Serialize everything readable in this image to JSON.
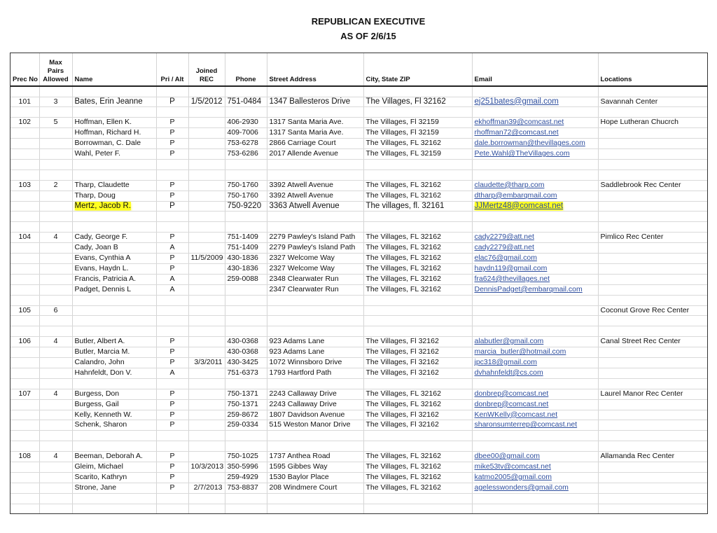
{
  "title": "REPUBLICAN EXECUTIVE",
  "subtitle": "AS OF 2/6/15",
  "highlight_color": "#ffff00",
  "link_color": "#2e4e9e",
  "columns": [
    "Prec No",
    "Max Pairs Allowed",
    "Name",
    "Pri / Alt",
    "Joined REC",
    "Phone",
    "Street Address",
    "City, State ZIP",
    "Email",
    "Locations"
  ],
  "rows": [
    {
      "prec": "101",
      "max": "3",
      "name": "Bates, Erin Jeanne",
      "pa": "P",
      "joined": "1/5/2012",
      "phone": "751-0484",
      "street": "1347 Ballesteros Drive",
      "city": "The Villages, Fl  32162",
      "email": "ej251bates@gmail.com",
      "loc": "Savannah Center",
      "big": true
    },
    {},
    {
      "prec": "102",
      "max": "5",
      "name": "Hoffman, Ellen K.",
      "pa": "P",
      "phone": "406-2930",
      "street": "1317 Santa Maria Ave.",
      "city": "The Villages, Fl  32159",
      "email": "ekhoffman39@comcast.net",
      "loc": "Hope Lutheran Chucrch"
    },
    {
      "name": "Hoffman, Richard H.",
      "pa": "P",
      "phone": "409-7006",
      "street": "1317 Santa Maria Ave.",
      "city": "The Villages, Fl  32159",
      "email": "rhoffman72@comcast.net"
    },
    {
      "name": "Borrowman, C. Dale",
      "pa": "P",
      "phone": "753-6278",
      "street": "2866 Carriage Court",
      "city": "The Villages, FL  32162",
      "email": "dale.borrowman@thevillages.com"
    },
    {
      "name": "Wahl, Peter F.",
      "pa": "P",
      "phone": "753-6286",
      "street": "2017 Allende Avenue",
      "city": "The Villages, FL  32159",
      "email": "Pete.Wahl@TheVillages.com"
    },
    {},
    {},
    {
      "prec": "103",
      "max": "2",
      "name": "Tharp, Claudette",
      "pa": "P",
      "phone": "750-1760",
      "street": "3392 Atwell Avenue",
      "city": "The Villages, FL  32162",
      "email": "claudette@tharp.com",
      "loc": "Saddlebrook Rec Center"
    },
    {
      "name": "Tharp, Doug",
      "pa": "P",
      "phone": "750-1760",
      "street": "3392 Atwell Avenue",
      "city": "The Villages, FL  32162",
      "email": "dtharp@embarqmail.com"
    },
    {
      "name": "Mertz, Jacob R.",
      "pa": "P",
      "phone": "750-9220",
      "street": "3363 Atwell Avenue",
      "city": "The villages, fl.  32161",
      "email": "JJMertz48@comcast.net",
      "highlight": true
    },
    {},
    {},
    {
      "prec": "104",
      "max": "4",
      "name": "Cady, George F.",
      "pa": "P",
      "phone": "751-1409",
      "street": "2279 Pawley's Island Path",
      "city": "The Villages, FL 32162",
      "email": "cady2279@att.net",
      "loc": "Pimlico Rec Center"
    },
    {
      "name": "Cady, Joan B",
      "pa": "A",
      "phone": "751-1409",
      "street": "2279 Pawley's Island Path",
      "city": "The Villages, FL 32162",
      "email": "cady2279@att.net"
    },
    {
      "name": "Evans, Cynthia A",
      "pa": "P",
      "joined": "11/5/2009",
      "phone": "430-1836",
      "street": "2327 Welcome Way",
      "city": "The Villages, FL  32162",
      "email": "elac76@gmail.com"
    },
    {
      "name": "Evans, Haydn L.",
      "pa": "P",
      "phone": "430-1836",
      "street": "2327 Welcome Way",
      "city": "The Villages, FL  32162",
      "email": "haydn119@gmail.com"
    },
    {
      "name": "Francis, Patricia A.",
      "pa": "A",
      "phone": "259-0088",
      "street": "2348 Clearwater Run",
      "city": "The Villages, FL  32162",
      "email": "fra624@thevillages.net"
    },
    {
      "name": "Padget, Dennis L",
      "pa": "A",
      "street": "2347 Clearwater Run",
      "city": "The Villages, FL 32162",
      "email": "DennisPadget@embarqmail.com"
    },
    {},
    {
      "prec": "105",
      "max": "6",
      "loc": "Coconut Grove Rec Center"
    },
    {},
    {},
    {
      "prec": "106",
      "max": "4",
      "name": "Butler, Albert A.",
      "pa": "P",
      "phone": "430-0368",
      "street": "923 Adams Lane",
      "city": "The Villages, Fl  32162",
      "email": "alabutler@gmail.com",
      "loc": "Canal Street Rec Center"
    },
    {
      "name": "Butler, Marcia M.",
      "pa": "P",
      "phone": "430-0368",
      "street": "923 Adams Lane",
      "city": "The Villages, Fl  32162",
      "email": "marcia_butler@hotmail.com"
    },
    {
      "name": "Calandro, John",
      "pa": "P",
      "joined": "3/3/2011",
      "phone": "430-3425",
      "street": "1072 Winnsboro Drive",
      "city": "The Villages, Fl  32162",
      "email": "jpc318@gmail.com"
    },
    {
      "name": "Hahnfeldt, Don V.",
      "pa": "A",
      "phone": "751-6373",
      "street": "1793 Hartford Path",
      "city": "The Villages, Fl  32162",
      "email": "dvhahnfeldt@cs.com"
    },
    {},
    {
      "prec": "107",
      "max": "4",
      "name": "Burgess, Don",
      "pa": "P",
      "phone": "750-1371",
      "street": "2243 Callaway Drive",
      "city": "The Villages, FL  32162",
      "email": "donbrep@comcast.net",
      "loc": "Laurel Manor Rec Center"
    },
    {
      "name": "Burgess, Gail",
      "pa": "P",
      "phone": "750-1371",
      "street": "2243 Callaway Drive",
      "city": "The Villages, FL  32162",
      "email": "donbrep@comcast.net"
    },
    {
      "name": "Kelly, Kenneth W.",
      "pa": "P",
      "phone": "259-8672",
      "street": "1807 Davidson Avenue",
      "city": "The Villages, Fl  32162",
      "email": "KenWKelly@comcast.net"
    },
    {
      "name": "Schenk, Sharon",
      "pa": "P",
      "phone": "259-0334",
      "street": "515 Weston Manor Drive",
      "city": "The Villages, Fl  32162",
      "email": "sharonsumterrep@comcast.net"
    },
    {},
    {},
    {
      "prec": "108",
      "max": "4",
      "name": "Beeman, Deborah A.",
      "pa": "P",
      "phone": "750-1025",
      "street": "1737 Anthea Road",
      "city": "The Villages, FL  32162",
      "email": "dbee00@gmail.com",
      "loc": "Allamanda Rec Center"
    },
    {
      "name": "Gleim, Michael",
      "pa": "P",
      "joined": "10/3/2013",
      "phone": "350-5996",
      "street": "1595 Gibbes Way",
      "city": "The Villages, FL  32162",
      "email": "mike53tv@comcast.net"
    },
    {
      "name": "Scarito, Kathryn",
      "pa": "P",
      "phone": "259-4929",
      "street": "1530 Baylor Place",
      "city": "The Villages, FL  32162",
      "email": "katmo2005@gmail.com"
    },
    {
      "name": "Strone, Jane",
      "pa": "P",
      "joined": "2/7/2013",
      "phone": "753-8837",
      "street": "208 Windmere Court",
      "city": "The Villages, FL  32162",
      "email": "agelesswonders@gmail.com"
    },
    {},
    {}
  ]
}
